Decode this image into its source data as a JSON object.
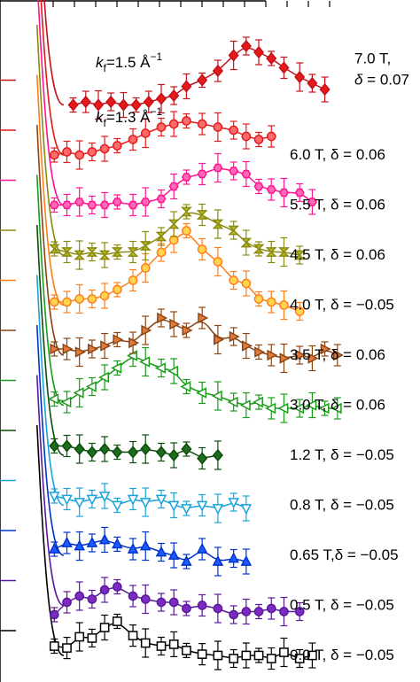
{
  "chart_data": {
    "type": "scatter",
    "title": "",
    "xlabel": "",
    "ylabel": "",
    "x_range": [
      0,
      1
    ],
    "offset_spacing": 1,
    "grid": false,
    "legend": "none",
    "series": [
      {
        "name": "0.0 T",
        "delta": "−0.05",
        "field": "0.0 T",
        "color": "#000000",
        "fill": "#ffffff",
        "marker": "square",
        "offset": 0,
        "x": [
          0.06,
          0.1,
          0.14,
          0.18,
          0.22,
          0.26,
          0.31,
          0.35,
          0.4,
          0.44,
          0.48,
          0.53,
          0.58,
          0.63,
          0.67,
          0.71,
          0.75,
          0.79,
          0.84,
          0.88
        ],
        "y": [
          0.15,
          0.12,
          0.3,
          0.28,
          0.45,
          0.55,
          0.32,
          0.2,
          0.15,
          0.18,
          0.08,
          0.02,
          0.0,
          -0.05,
          0.0,
          0.0,
          -0.05,
          0.05,
          -0.05,
          0.0
        ]
      },
      {
        "name": "0.5 T",
        "delta": "−0.05",
        "field": "0.5 T",
        "color": "#5a189a",
        "fill": "#7b2cbf",
        "marker": "circle",
        "offset": 1,
        "x": [
          0.06,
          0.1,
          0.14,
          0.18,
          0.22,
          0.26,
          0.31,
          0.35,
          0.4,
          0.44,
          0.48,
          0.53,
          0.58,
          0.63,
          0.67,
          0.71,
          0.75,
          0.79,
          0.84
        ],
        "y": [
          -0.15,
          0.05,
          0.15,
          0.1,
          0.25,
          0.3,
          0.15,
          0.1,
          0.05,
          0.05,
          -0.05,
          0.0,
          -0.05,
          -0.15,
          -0.1,
          -0.1,
          -0.05,
          -0.1,
          -0.1
        ]
      },
      {
        "name": "0.65 T",
        "delta": "−0.05",
        "field": "0.65 T",
        "color": "#0033cc",
        "fill": "#1e5bff",
        "marker": "triangle",
        "offset": 2,
        "x": [
          0.06,
          0.1,
          0.14,
          0.18,
          0.22,
          0.26,
          0.31,
          0.35,
          0.4,
          0.44,
          0.48,
          0.53,
          0.58,
          0.63,
          0.67
        ],
        "y": [
          0.1,
          0.2,
          0.15,
          0.2,
          0.25,
          0.18,
          0.1,
          0.15,
          0.05,
          0.0,
          -0.1,
          0.1,
          -0.1,
          -0.05,
          -0.1
        ]
      },
      {
        "name": "0.8 T",
        "delta": "−0.05",
        "field": "0.8 T",
        "color": "#1aa3d9",
        "fill": "#ffffff",
        "marker": "triangle-down",
        "offset": 3,
        "x": [
          0.06,
          0.1,
          0.14,
          0.18,
          0.22,
          0.26,
          0.31,
          0.35,
          0.4,
          0.44,
          0.48,
          0.53,
          0.58,
          0.63,
          0.67
        ],
        "y": [
          0.15,
          0.1,
          0.05,
          0.1,
          0.15,
          0.0,
          0.1,
          0.05,
          0.1,
          0.0,
          -0.05,
          0.0,
          -0.05,
          0.05,
          -0.05
        ]
      },
      {
        "name": "1.2 T",
        "delta": "−0.05",
        "field": "1.2 T",
        "color": "#0b4d0b",
        "fill": "#1f6b1f",
        "marker": "diamond",
        "offset": 4,
        "x": [
          0.06,
          0.1,
          0.14,
          0.18,
          0.22,
          0.26,
          0.31,
          0.35,
          0.4,
          0.44,
          0.48,
          0.53,
          0.58
        ],
        "y": [
          0.15,
          0.15,
          0.1,
          0.05,
          0.1,
          0.05,
          0.05,
          0.1,
          0.05,
          0.0,
          0.1,
          -0.05,
          0.0
        ]
      },
      {
        "name": "3.0 T",
        "delta": "0.06",
        "field": "3.0 T",
        "color": "#1a9b1a",
        "fill": "#ffffff",
        "marker": "triangle-left",
        "offset": 5,
        "x": [
          0.06,
          0.1,
          0.14,
          0.18,
          0.22,
          0.26,
          0.31,
          0.35,
          0.4,
          0.44,
          0.48,
          0.53,
          0.58,
          0.63,
          0.67,
          0.71,
          0.75,
          0.79,
          0.84,
          0.88,
          0.92,
          0.96
        ],
        "y": [
          0.1,
          0.05,
          0.2,
          0.3,
          0.45,
          0.6,
          0.8,
          0.7,
          0.6,
          0.55,
          0.3,
          0.2,
          0.15,
          0.05,
          0.0,
          0.05,
          -0.05,
          -0.05,
          -0.05,
          0.0,
          -0.05,
          -0.05
        ]
      },
      {
        "name": "3.5 T",
        "delta": "0.06",
        "field": "3.5 T",
        "color": "#8b4513",
        "fill": "#e07a3c",
        "marker": "triangle-right",
        "offset": 6,
        "x": [
          0.06,
          0.1,
          0.14,
          0.18,
          0.22,
          0.26,
          0.31,
          0.35,
          0.4,
          0.44,
          0.48,
          0.53,
          0.58,
          0.63,
          0.67,
          0.71,
          0.75,
          0.79,
          0.84,
          0.88,
          0.92,
          0.96
        ],
        "y": [
          0.1,
          0.1,
          0.05,
          0.1,
          0.15,
          0.25,
          0.2,
          0.4,
          0.6,
          0.5,
          0.4,
          0.6,
          0.25,
          0.3,
          0.15,
          0.05,
          0.0,
          -0.05,
          0.0,
          -0.05,
          0.1,
          0.0
        ]
      },
      {
        "name": "4.0 T",
        "delta": "−0.05",
        "field": "4.0 T",
        "color": "#ff7f1a",
        "fill": "#ffd54f",
        "marker": "circle",
        "offset": 7,
        "x": [
          0.06,
          0.1,
          0.14,
          0.18,
          0.22,
          0.26,
          0.31,
          0.35,
          0.4,
          0.44,
          0.48,
          0.53,
          0.58,
          0.63,
          0.67,
          0.71,
          0.75,
          0.79,
          0.84
        ],
        "y": [
          0.05,
          0.05,
          0.1,
          0.1,
          0.15,
          0.25,
          0.4,
          0.6,
          0.85,
          1.05,
          1.2,
          0.9,
          0.7,
          0.4,
          0.35,
          0.1,
          0.05,
          0.0,
          -0.1
        ]
      },
      {
        "name": "4.5 T",
        "delta": "0.06",
        "field": "4.5 T",
        "color": "#8a8a12",
        "fill": "#b8b81e",
        "marker": "hourglass",
        "offset": 8,
        "x": [
          0.06,
          0.1,
          0.14,
          0.18,
          0.22,
          0.26,
          0.31,
          0.35,
          0.4,
          0.44,
          0.48,
          0.53,
          0.58,
          0.63,
          0.67,
          0.71,
          0.75,
          0.79,
          0.84
        ],
        "y": [
          0.1,
          0.05,
          0.0,
          0.05,
          0.0,
          0.05,
          0.05,
          0.15,
          0.3,
          0.5,
          0.7,
          0.65,
          0.5,
          0.4,
          0.2,
          0.1,
          0.05,
          0.05,
          0.0
        ]
      },
      {
        "name": "5.5 T",
        "delta": "0.06",
        "field": "5.5 T",
        "color": "#ff1493",
        "fill": "#ff69b4",
        "marker": "hexagon",
        "offset": 9,
        "x": [
          0.06,
          0.1,
          0.14,
          0.18,
          0.22,
          0.26,
          0.31,
          0.35,
          0.4,
          0.44,
          0.48,
          0.53,
          0.58,
          0.63,
          0.67,
          0.71,
          0.75,
          0.79,
          0.84,
          0.88
        ],
        "y": [
          0.0,
          0.0,
          0.05,
          0.0,
          0.0,
          0.05,
          0.0,
          0.05,
          0.1,
          0.3,
          0.45,
          0.5,
          0.6,
          0.55,
          0.5,
          0.3,
          0.25,
          0.2,
          0.2,
          0.05
        ]
      },
      {
        "name": "6.0 T",
        "delta": "0.06",
        "field": "6.0 T",
        "color": "#e41a1c",
        "fill": "#ff6b6b",
        "marker": "circle",
        "offset": 10,
        "x": [
          0.06,
          0.1,
          0.14,
          0.18,
          0.22,
          0.26,
          0.31,
          0.35,
          0.4,
          0.44,
          0.48,
          0.53,
          0.58,
          0.63,
          0.67,
          0.71,
          0.75
        ],
        "y": [
          0.0,
          0.05,
          0.0,
          0.05,
          0.1,
          0.15,
          0.25,
          0.35,
          0.45,
          0.5,
          0.55,
          0.5,
          0.45,
          0.4,
          0.3,
          0.25,
          0.3
        ]
      },
      {
        "name": "7.0 T",
        "delta": "0.07",
        "field": "7.0 T",
        "color": "#c41018",
        "fill": "#e41a1c",
        "marker": "diamond",
        "offset": 11,
        "x": [
          0.12,
          0.16,
          0.2,
          0.24,
          0.28,
          0.32,
          0.36,
          0.4,
          0.44,
          0.48,
          0.53,
          0.58,
          0.63,
          0.67,
          0.71,
          0.75,
          0.79,
          0.84,
          0.88,
          0.92
        ],
        "y": [
          0.0,
          0.05,
          0.0,
          0.05,
          0.0,
          0.0,
          0.05,
          0.1,
          0.15,
          0.3,
          0.4,
          0.55,
          0.8,
          0.95,
          0.85,
          0.75,
          0.6,
          0.45,
          0.35,
          0.25
        ]
      }
    ],
    "annotations": [
      {
        "name": "kf-1.5",
        "text_pre": "k",
        "sub": "f",
        "text_mid": "=1.5 Å",
        "sup": "−1"
      },
      {
        "name": "kf-1.3",
        "text_pre": "k",
        "sub": "f",
        "text_mid": "=1.3 Å",
        "sup": "−1"
      }
    ],
    "labels": [
      {
        "series": "7.0 T",
        "line1": "7.0 T,",
        "line2_pre": "δ",
        "line2_post": " = 0.07"
      },
      {
        "series": "6.0 T",
        "text": "6.0 T,  δ =  0.06"
      },
      {
        "series": "5.5 T",
        "text": "5.5 T,  δ =  0.06"
      },
      {
        "series": "4.5 T",
        "text": "4.5 T,  δ =  0.06"
      },
      {
        "series": "4.0 T",
        "text": "4.0 T,  δ = −0.05"
      },
      {
        "series": "3.5 T",
        "text": "3.5 T,  δ =  0.06"
      },
      {
        "series": "3.0 T",
        "text": "3.0 T,  δ =  0.06"
      },
      {
        "series": "1.2 T",
        "text": "1.2 T,  δ = −0.05"
      },
      {
        "series": "0.8 T",
        "text": "0.8 T,  δ = −0.05"
      },
      {
        "series": "0.65 T",
        "text": "0.65 T,δ = −0.05"
      },
      {
        "series": "0.5 T",
        "text": "0.5 T,  δ = −0.05"
      },
      {
        "series": "0.0 T",
        "text": "0.0 T,  δ = −0.05"
      }
    ]
  }
}
